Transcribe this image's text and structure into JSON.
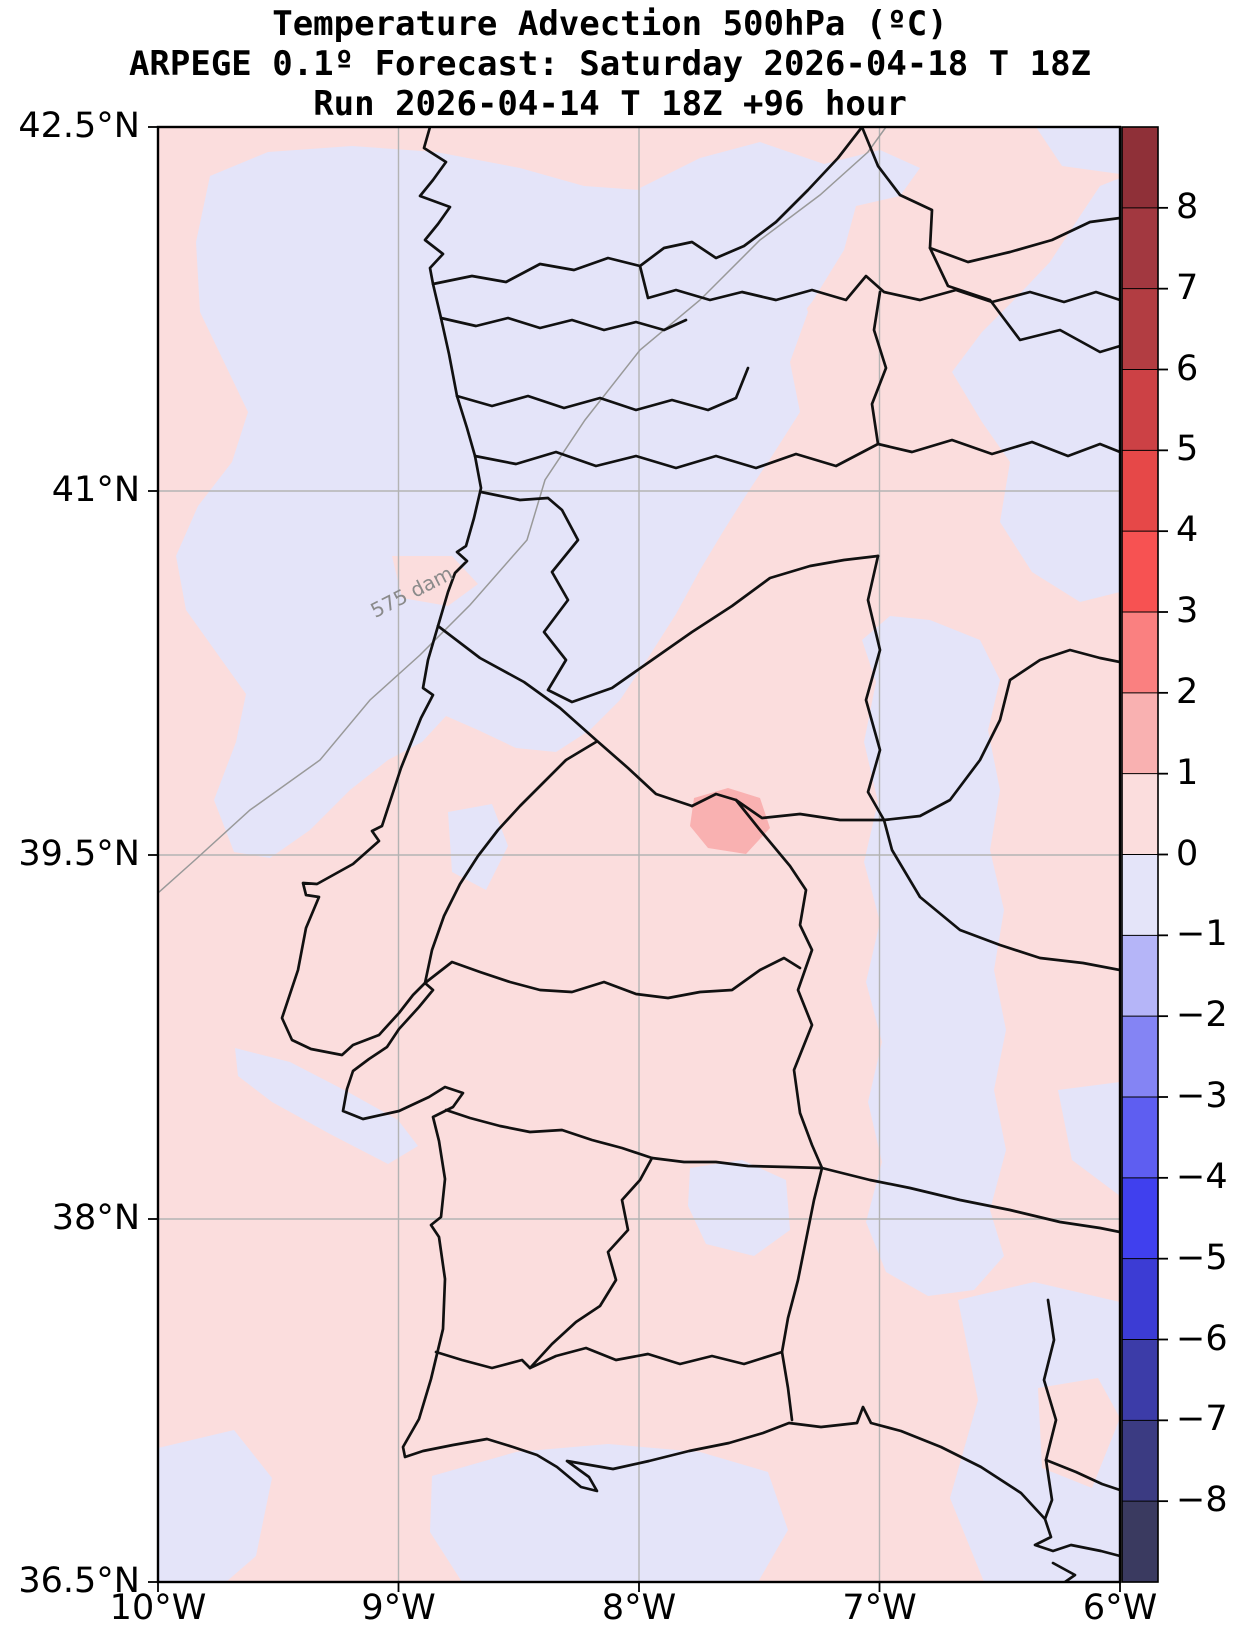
{
  "title": {
    "line1": "Temperature Advection  500hPa (ºC)",
    "line2": "ARPEGE 0.1º Forecast: Saturday 2026-04-18 T 18Z",
    "line3": "Run 2026-04-14 T 18Z +96 hour"
  },
  "axes": {
    "lat_tick_labels": [
      "42.5°N",
      "41°N",
      "39.5°N",
      "38°N",
      "36.5°N"
    ],
    "lon_tick_labels": [
      "10°W",
      "9°W",
      "8°W",
      "7°W",
      "6°W"
    ]
  },
  "map": {
    "contour_label": "575 dam",
    "colors": {
      "weak_warm_0_1": "#fbdddd",
      "weak_cold_m1_0": "#e4e4f9",
      "warm_1_2": "#f9b1b1",
      "boundary_line": "#111111",
      "gridline": "#b3b3b3",
      "height_contour": "#999999"
    }
  },
  "colorbar": {
    "units": "ºC",
    "tick_labels": [
      "8",
      "7",
      "6",
      "5",
      "4",
      "3",
      "2",
      "1",
      "0",
      "−1",
      "−2",
      "−3",
      "−4",
      "−5",
      "−6",
      "−7",
      "−8"
    ],
    "tick_values": [
      8,
      7,
      6,
      5,
      4,
      3,
      2,
      1,
      0,
      -1,
      -2,
      -3,
      -4,
      -5,
      -6,
      -7,
      -8
    ],
    "segment_colors_top_to_bottom": [
      "#8f3038",
      "#a23840",
      "#b23d42",
      "#cc4145",
      "#e64848",
      "#f75252",
      "#fa8080",
      "#f9b1b1",
      "#fbdddd",
      "#e4e4f9",
      "#b5b5f8",
      "#8484f4",
      "#5e5ef1",
      "#4040ee",
      "#3c3cd4",
      "#3c3ca8",
      "#3b3b82",
      "#3a3a60"
    ]
  },
  "chart_data": {
    "type": "heatmap",
    "title": "Temperature Advection  500hPa (ºC)",
    "subtitle": "ARPEGE 0.1º Forecast: Saturday 2026-04-18 T 18Z",
    "run_line": "Run 2026-04-14 T 18Z +96 hour",
    "x_axis": {
      "tick_labels": [
        "10°W",
        "9°W",
        "8°W",
        "7°W",
        "6°W"
      ],
      "range_lon_deg": [
        -10,
        -6
      ],
      "grid": true
    },
    "y_axis": {
      "tick_labels": [
        "42.5°N",
        "41°N",
        "39.5°N",
        "38°N",
        "36.5°N"
      ],
      "range_lat_deg": [
        36.5,
        42.5
      ],
      "grid": true
    },
    "colorbar": {
      "position": "right",
      "units": "ºC",
      "tick_values": [
        8,
        7,
        6,
        5,
        4,
        3,
        2,
        1,
        0,
        -1,
        -2,
        -3,
        -4,
        -5,
        -6,
        -7,
        -8
      ],
      "n_segments": 18,
      "value_range": [
        -9,
        9
      ]
    },
    "field_regions": [
      {
        "value_range_degC": [
          0,
          1
        ],
        "description": "weak warm advection (pale pink) over most of the domain: western left margin, central and southern Portugal, NE diagonal band and Spanish interior"
      },
      {
        "value_range_degC": [
          -1,
          0
        ],
        "description": "weak cold advection (pale lavender) over NW Atlantic blob, northern interior of Portugal, top-right corner strip, a meandering N-S band near 6.8°W, a small patch near Leiria, an ocean streak SW of Lisbon, and along the southern coast / bottom edge"
      },
      {
        "value_range_degC": [
          1,
          2
        ],
        "description": "single small warm advection maximum near 7.55°W, 39.55°N in east-central Portugal"
      }
    ],
    "overlays": [
      {
        "type": "contour_line",
        "label": "575 dam",
        "description": "gray 500 hPa geopotential height contour running from ≈7°W at the top edge SW to the left edge near 39.4°N"
      },
      {
        "type": "boundaries",
        "description": "black coastline of Portugal / SW Spain and administrative district boundaries"
      }
    ],
    "legend_position": "right colorbar"
  }
}
